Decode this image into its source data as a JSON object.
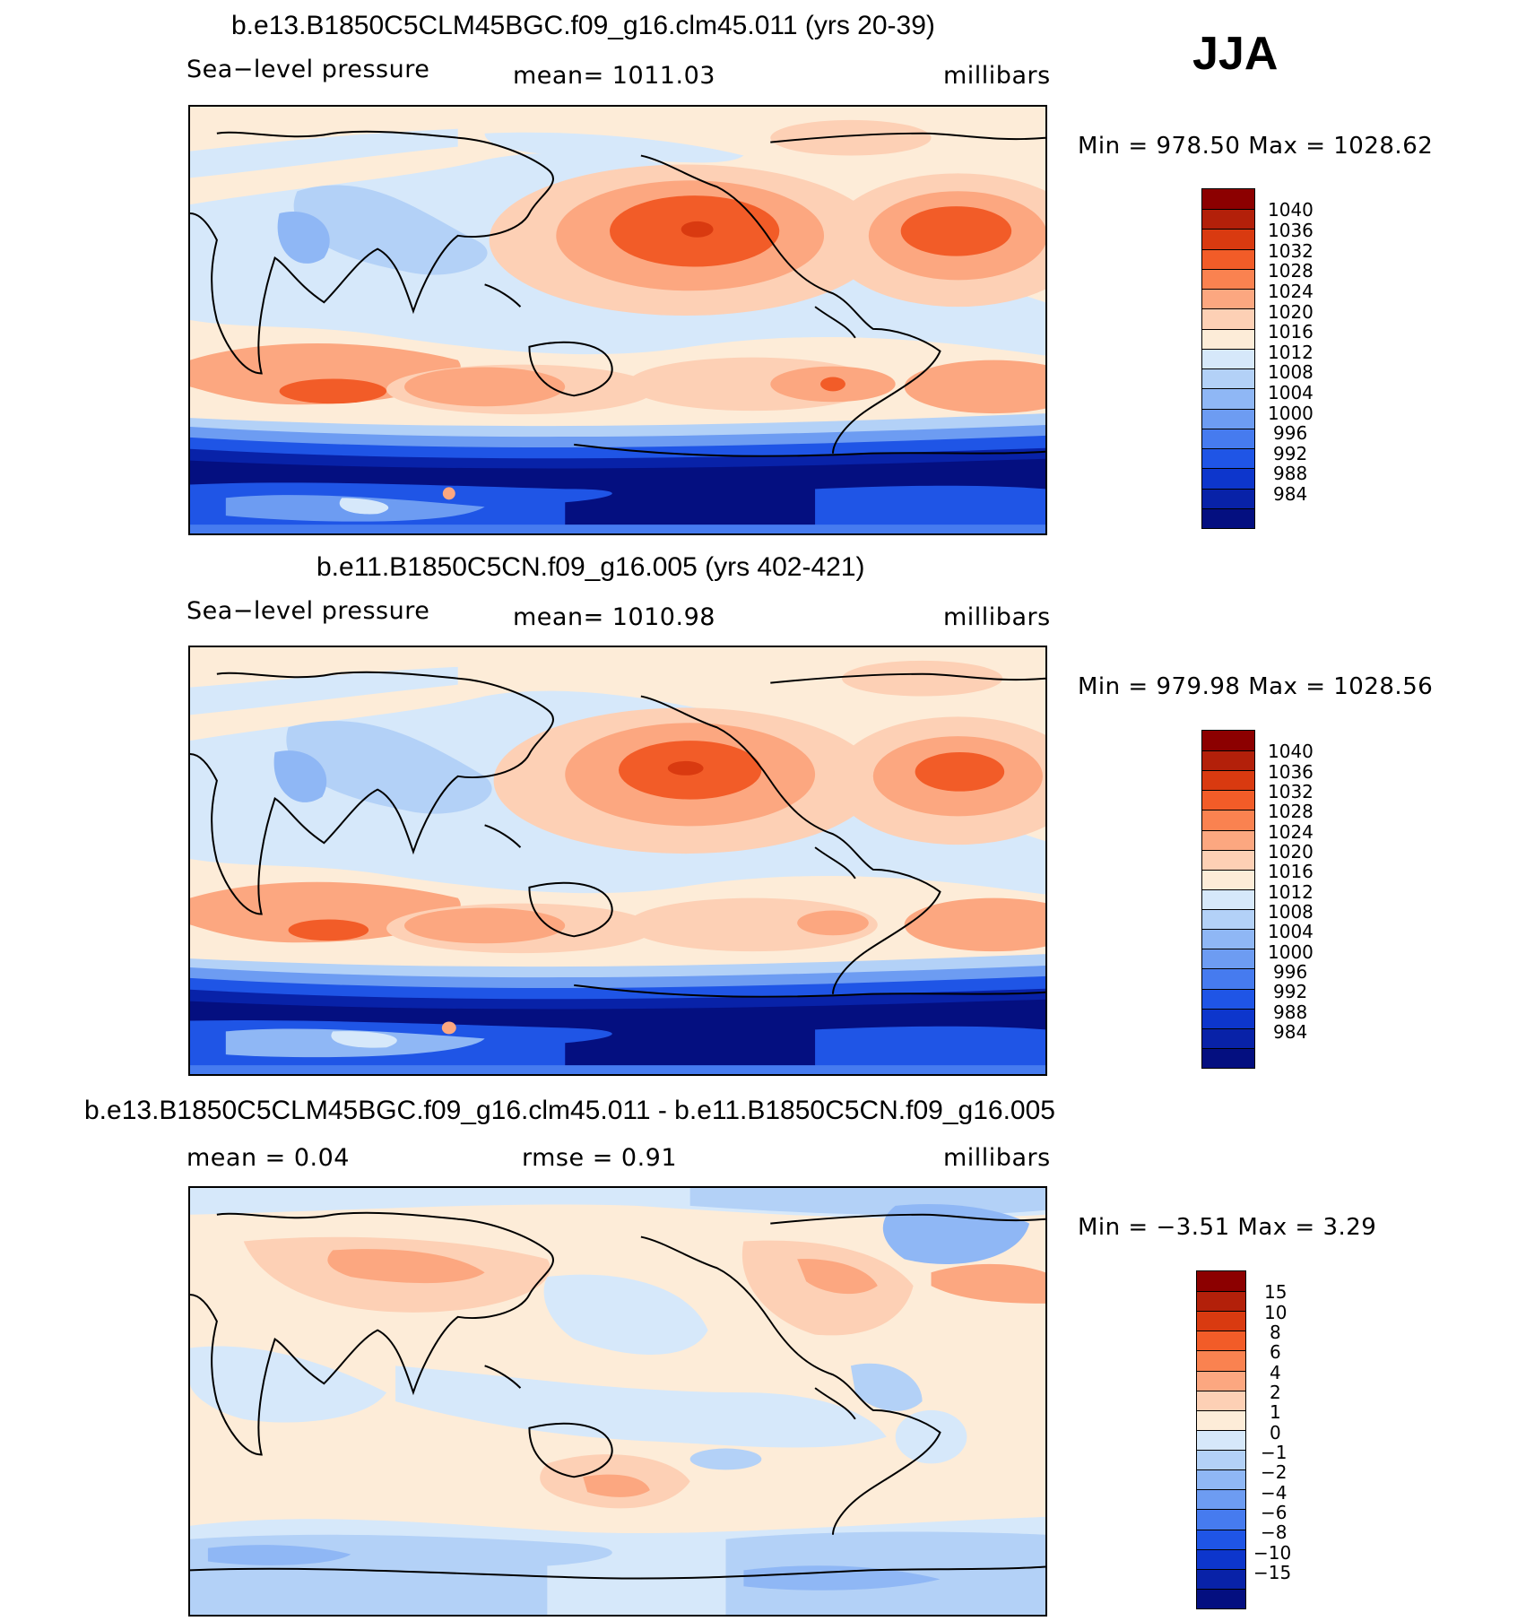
{
  "season": "JJA",
  "panels": [
    {
      "title": "b.e13.B1850C5CLM45BGC.f09_g16.clm45.011 (yrs 20-39)",
      "left_label": "Sea−level pressure",
      "center_label": "mean=  1011.03",
      "right_label": "millibars",
      "minmax": "Min  =  978.50  Max  =  1028.62",
      "map_type": "full"
    },
    {
      "title": "b.e11.B1850C5CN.f09_g16.005 (yrs 402-421)",
      "left_label": "Sea−level pressure",
      "center_label": "mean=  1010.98",
      "right_label": "millibars",
      "minmax": "Min  =  979.98  Max  =  1028.56",
      "map_type": "full"
    },
    {
      "title": "b.e13.B1850C5CLM45BGC.f09_g16.clm45.011 - b.e11.B1850C5CN.f09_g16.005",
      "left_label": "mean  =     0.04",
      "center_label": "rmse  =     0.91",
      "right_label": "millibars",
      "minmax": "Min  =   −3.51  Max  =     3.29",
      "map_type": "diff"
    }
  ],
  "colorbars": {
    "full": {
      "colors": [
        "#8c0000",
        "#b3200a",
        "#d93a10",
        "#f25c28",
        "#fa8250",
        "#fca780",
        "#fdd0b5",
        "#fdecd8",
        "#d6e8fa",
        "#b3d1f7",
        "#8fb7f5",
        "#6d9cf2",
        "#467bef",
        "#1f55e6",
        "#0d36cc",
        "#0822a8",
        "#040f80"
      ],
      "labels": [
        "1040",
        "1036",
        "1032",
        "1028",
        "1024",
        "1020",
        "1016",
        "1012",
        "1008",
        "1004",
        "1000",
        "996",
        "992",
        "988",
        "984"
      ]
    },
    "diff": {
      "colors": [
        "#8c0000",
        "#b3200a",
        "#d93a10",
        "#f25c28",
        "#fa8250",
        "#fca780",
        "#fdd0b5",
        "#fdecd8",
        "#d6e8fa",
        "#b3d1f7",
        "#8fb7f5",
        "#6d9cf2",
        "#467bef",
        "#1f55e6",
        "#0d36cc",
        "#0822a8",
        "#040f80"
      ],
      "labels": [
        "15",
        "10",
        "8",
        "6",
        "4",
        "2",
        "1",
        "0",
        "−1",
        "−2",
        "−4",
        "−6",
        "−8",
        "−10",
        "−15"
      ]
    }
  }
}
